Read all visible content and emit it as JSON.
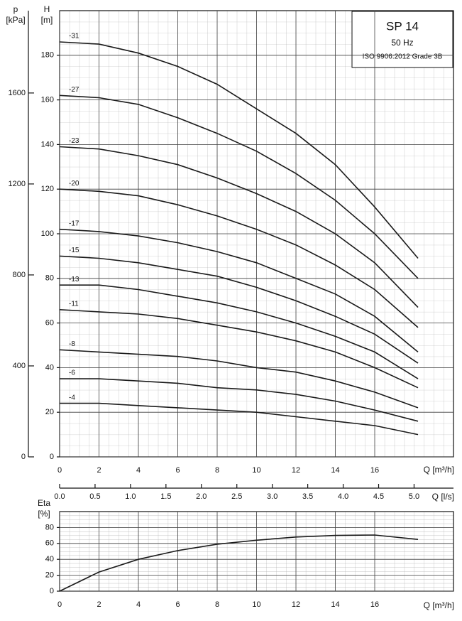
{
  "chart_data": [
    {
      "type": "line",
      "title": "SP 14",
      "subtitle": "50 Hz",
      "annotation": "ISO 9906:2012 Grade 3B",
      "ylabel": "H",
      "yunit": "[m]",
      "y2label": "p",
      "y2unit": "[kPa]",
      "xlabel": "Q [m³/h]",
      "x2label": "Q [l/s]",
      "x": [
        0,
        2,
        4,
        6,
        8,
        10,
        12,
        14,
        16,
        18.2
      ],
      "xlim": [
        0,
        20
      ],
      "xticks": [
        0,
        2,
        4,
        6,
        8,
        10,
        12,
        14,
        16
      ],
      "ylim": [
        0,
        200
      ],
      "yticks": [
        0,
        20,
        40,
        60,
        80,
        100,
        120,
        140,
        160,
        180
      ],
      "y2lim": [
        0,
        1962
      ],
      "y2ticks": [
        0,
        400,
        800,
        1200,
        1600
      ],
      "x2lim": [
        0,
        5.556
      ],
      "x2ticks": [
        {
          "value": 0,
          "label": "0.0"
        },
        0.5,
        {
          "value": 1,
          "label": "1.0"
        },
        1.5,
        {
          "value": 2,
          "label": "2.0"
        },
        2.5,
        {
          "value": 3,
          "label": "3.0"
        },
        3.5,
        {
          "value": 4,
          "label": "4.0"
        },
        4.5,
        {
          "value": 5,
          "label": "5.0"
        }
      ],
      "grid": true,
      "series": [
        {
          "name": "-31",
          "color": "#1a1a1a",
          "values": [
            186,
            185,
            181,
            175,
            167,
            156,
            145,
            131,
            112,
            89
          ]
        },
        {
          "name": "-27",
          "color": "#1a1a1a",
          "values": [
            162,
            161,
            158,
            152,
            145,
            137,
            127,
            115,
            100,
            80
          ]
        },
        {
          "name": "-23",
          "color": "#1a1a1a",
          "values": [
            139,
            138,
            135,
            131,
            125,
            118,
            110,
            100,
            87,
            67
          ]
        },
        {
          "name": "-20",
          "color": "#1a1a1a",
          "values": [
            120,
            119,
            117,
            113,
            108,
            102,
            95,
            86,
            75,
            58
          ]
        },
        {
          "name": "-17",
          "color": "#1a1a1a",
          "values": [
            102,
            101,
            99,
            96,
            92,
            87,
            80,
            73,
            63,
            47
          ]
        },
        {
          "name": "-15",
          "color": "#1a1a1a",
          "values": [
            90,
            89,
            87,
            84,
            81,
            76,
            70,
            63,
            55,
            42
          ]
        },
        {
          "name": "-13",
          "color": "#1a1a1a",
          "values": [
            77,
            77,
            75,
            72,
            69,
            65,
            60,
            54,
            47,
            35
          ]
        },
        {
          "name": "-11",
          "color": "#1a1a1a",
          "values": [
            66,
            65,
            64,
            62,
            59,
            56,
            52,
            47,
            40,
            31
          ]
        },
        {
          "name": "-8",
          "color": "#1a1a1a",
          "values": [
            48,
            47,
            46,
            45,
            43,
            40,
            38,
            34,
            29,
            22
          ]
        },
        {
          "name": "-6",
          "color": "#1a1a1a",
          "values": [
            35,
            35,
            34,
            33,
            31,
            30,
            28,
            25,
            21,
            16
          ]
        },
        {
          "name": "-4",
          "color": "#1a1a1a",
          "values": [
            24,
            24,
            23,
            22,
            21,
            20,
            18,
            16,
            14,
            10
          ]
        }
      ]
    },
    {
      "type": "line",
      "ylabel": "Eta",
      "yunit": "[%]",
      "xlabel": "Q [m³/h]",
      "x": [
        0,
        2,
        4,
        6,
        8,
        10,
        12,
        14,
        16,
        18.2
      ],
      "xlim": [
        0,
        20
      ],
      "xticks": [
        0,
        2,
        4,
        6,
        8,
        10,
        12,
        14,
        16
      ],
      "ylim": [
        0,
        100
      ],
      "yticks": [
        0,
        20,
        40,
        60,
        80
      ],
      "grid": true,
      "series": [
        {
          "color": "#1a1a1a",
          "values": [
            0,
            24,
            40,
            51,
            59,
            64,
            68,
            70,
            70.5,
            65
          ]
        }
      ]
    }
  ]
}
